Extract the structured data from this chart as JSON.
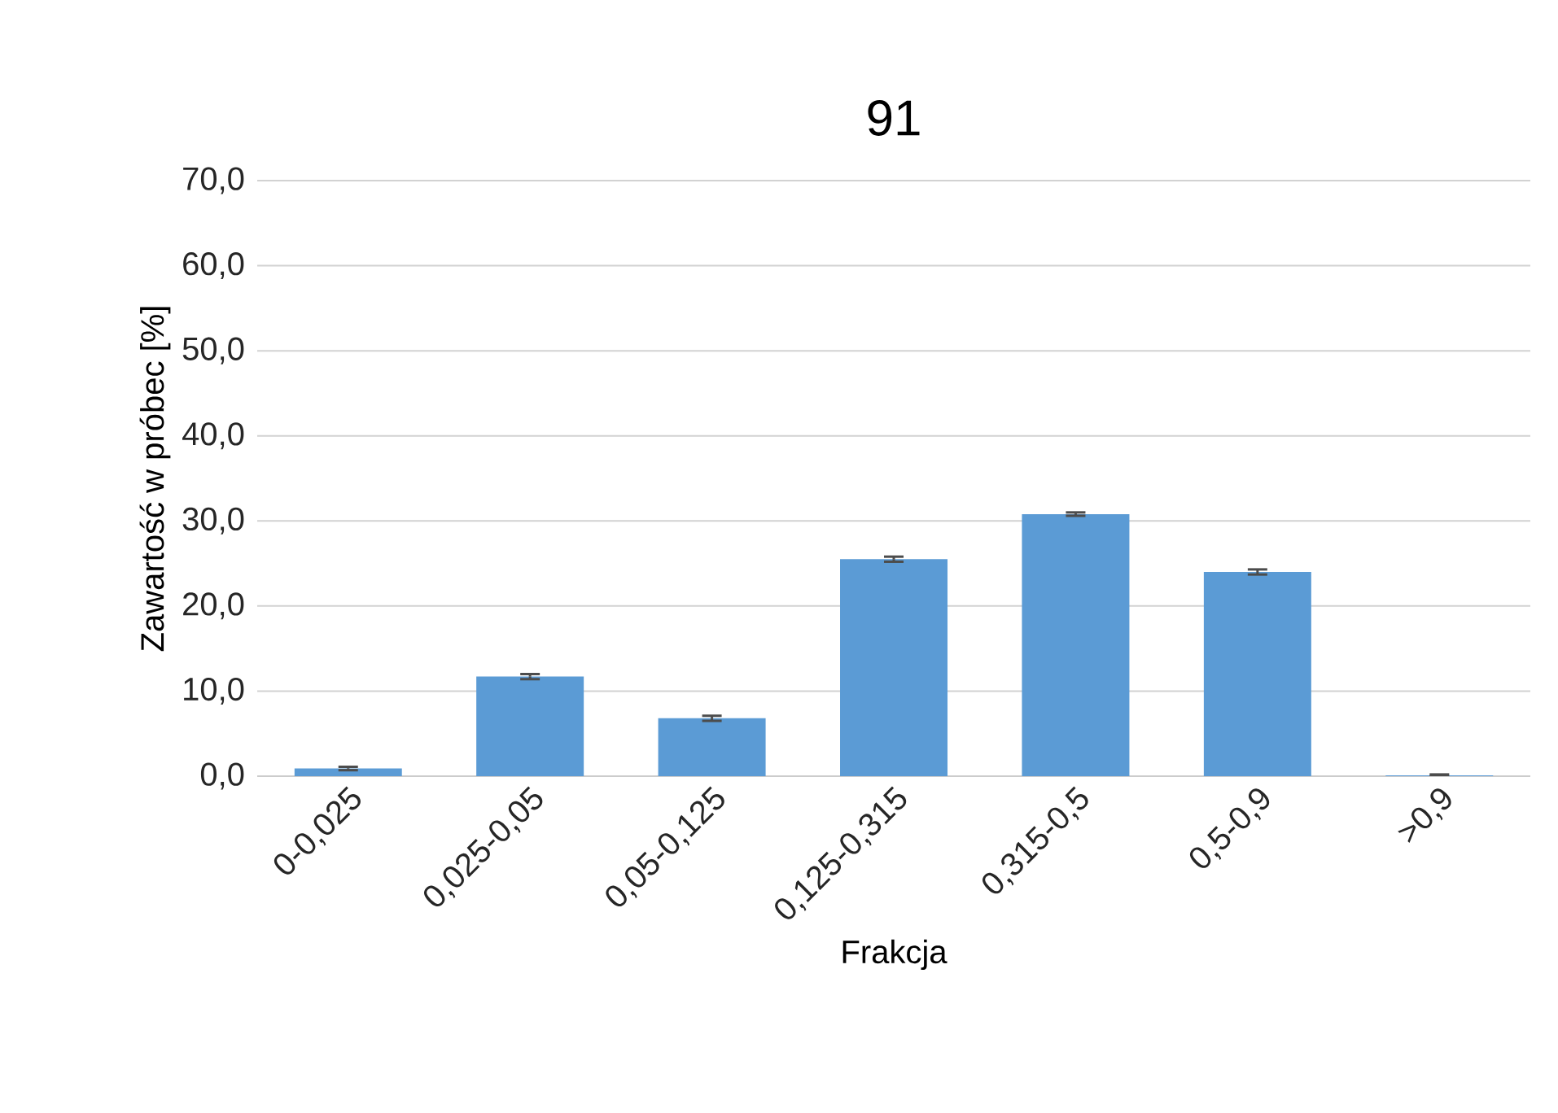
{
  "chart_data": {
    "type": "bar",
    "title": "91",
    "xlabel": "Frakcja",
    "ylabel": "Zawartość w próbec [%]",
    "categories": [
      "0-0,025",
      "0,025-0,05",
      "0,05-0,125",
      "0,125-0,315",
      "0,315-0,5",
      "0,5-0,9",
      ">0,9"
    ],
    "values": [
      0.9,
      11.7,
      6.8,
      25.5,
      30.8,
      24.0,
      0.1
    ],
    "errors": [
      0.2,
      0.3,
      0.3,
      0.3,
      0.2,
      0.3,
      0.1
    ],
    "color": "#5b9bd5",
    "ylim": [
      0,
      70
    ],
    "yticks": [
      {
        "value": 0,
        "label": "0,0"
      },
      {
        "value": 10,
        "label": "10,0"
      },
      {
        "value": 20,
        "label": "20,0"
      },
      {
        "value": 30,
        "label": "30,0"
      },
      {
        "value": 40,
        "label": "40,0"
      },
      {
        "value": 50,
        "label": "50,0"
      },
      {
        "value": 60,
        "label": "60,0"
      },
      {
        "value": 70,
        "label": "70,0"
      }
    ],
    "grid": "y"
  }
}
